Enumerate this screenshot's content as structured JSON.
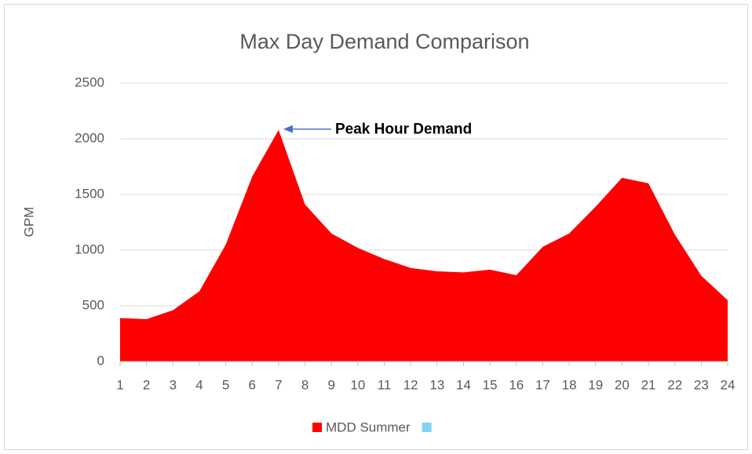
{
  "chart_data": {
    "type": "area",
    "title": "Max Day Demand Comparison",
    "y_label": "GPM",
    "categories": [
      "1",
      "2",
      "3",
      "4",
      "5",
      "6",
      "7",
      "8",
      "9",
      "10",
      "11",
      "12",
      "13",
      "14",
      "15",
      "16",
      "17",
      "18",
      "19",
      "20",
      "21",
      "22",
      "23",
      "24"
    ],
    "series": [
      {
        "name": "MDD Summer",
        "color": "#ff0000",
        "values": [
          390,
          380,
          460,
          630,
          1050,
          1660,
          2080,
          1410,
          1150,
          1020,
          920,
          840,
          810,
          800,
          825,
          775,
          1030,
          1150,
          1390,
          1650,
          1600,
          1140,
          770,
          550
        ]
      },
      {
        "color": "#7fd3f0",
        "values": [
          null,
          null,
          null,
          null,
          null,
          null,
          null,
          null,
          null,
          null,
          null,
          null,
          null,
          null,
          null,
          null,
          null,
          null,
          null,
          null,
          null,
          null,
          null,
          null
        ]
      }
    ],
    "ylim": [
      0,
      2500
    ],
    "yticks": [
      0,
      500,
      1000,
      1500,
      2000,
      2500
    ],
    "grid": true,
    "legend": "bottom",
    "annotation": {
      "text": "Peak Hour Demand",
      "index": 6
    }
  }
}
